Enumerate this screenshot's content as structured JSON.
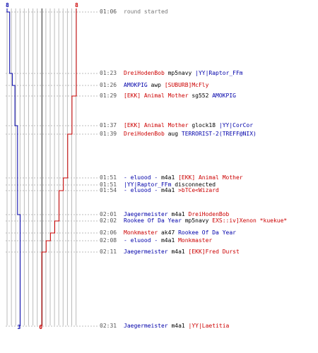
{
  "colors": {
    "blue": "#0000aa",
    "red": "#cc0000",
    "grid": "#bbbbbb",
    "dash": "#bbbbbb",
    "center": "#777777",
    "time": "#555555",
    "gray": "#777777"
  },
  "chart_data": {
    "type": "line",
    "title": "",
    "xlabel": "",
    "ylabel": "",
    "series": [
      {
        "name": "",
        "color": "blue",
        "start_label": "8",
        "end_label": "3",
        "x": [
          "01:06",
          "01:23",
          "01:26",
          "01:29",
          "01:37",
          "01:39",
          "01:51",
          "01:54",
          "02:01",
          "02:02",
          "02:06",
          "02:08",
          "02:11",
          "02:31"
        ],
        "values": [
          8,
          7,
          6,
          5,
          5,
          4,
          4,
          4,
          4,
          3,
          3,
          3,
          3,
          3
        ]
      },
      {
        "name": "",
        "color": "red",
        "start_label": "8",
        "end_label": "0",
        "x": [
          "01:06",
          "01:23",
          "01:26",
          "01:29",
          "01:37",
          "01:39",
          "01:51",
          "01:54",
          "02:01",
          "02:02",
          "02:06",
          "02:08",
          "02:11",
          "02:31"
        ],
        "values": [
          8,
          8,
          8,
          8,
          7,
          7,
          6,
          5,
          4,
          4,
          3,
          2,
          1,
          0
        ]
      }
    ]
  },
  "events": [
    {
      "time": "01:06",
      "parts": [
        {
          "t": "round started",
          "c": "gray"
        }
      ]
    },
    {
      "time": "01:23",
      "parts": [
        {
          "t": "DreiHodenBob",
          "c": "red"
        },
        {
          "t": " mp5navy ",
          "c": "black"
        },
        {
          "t": "|YY|Raptor_FFm",
          "c": "blue"
        }
      ]
    },
    {
      "time": "01:26",
      "parts": [
        {
          "t": "AMOKPIG",
          "c": "blue"
        },
        {
          "t": " awp ",
          "c": "black"
        },
        {
          "t": "[SUBURB]McFly",
          "c": "red"
        }
      ]
    },
    {
      "time": "01:29",
      "parts": [
        {
          "t": "[EKK] Animal Mother",
          "c": "red"
        },
        {
          "t": " sg552 ",
          "c": "black"
        },
        {
          "t": "AMOKPIG",
          "c": "blue"
        }
      ]
    },
    {
      "time": "01:37",
      "parts": [
        {
          "t": "[EKK] Animal Mother",
          "c": "red"
        },
        {
          "t": " glock18 ",
          "c": "black"
        },
        {
          "t": "|YY|CorCor",
          "c": "blue"
        }
      ]
    },
    {
      "time": "01:39",
      "parts": [
        {
          "t": "DreiHodenBob",
          "c": "red"
        },
        {
          "t": " aug ",
          "c": "black"
        },
        {
          "t": "TERRORIST-2(TREFF@NIX)",
          "c": "blue"
        }
      ]
    },
    {
      "time": "01:51",
      "parts": [
        {
          "t": "- eluood -",
          "c": "blue"
        },
        {
          "t": " m4a1 ",
          "c": "black"
        },
        {
          "t": "[EKK] Animal Mother",
          "c": "red"
        }
      ]
    },
    {
      "time": "01:51",
      "parts": [
        {
          "t": "|YY|Raptor_FFm",
          "c": "blue"
        },
        {
          "t": " disconnected",
          "c": "black"
        }
      ]
    },
    {
      "time": "01:54",
      "parts": [
        {
          "t": "- eluood -",
          "c": "blue"
        },
        {
          "t": " m4a1 ",
          "c": "black"
        },
        {
          "t": ">bTCe<Wizard",
          "c": "red"
        }
      ]
    },
    {
      "time": "02:01",
      "parts": [
        {
          "t": "Jaegermeister",
          "c": "blue"
        },
        {
          "t": " m4a1 ",
          "c": "black"
        },
        {
          "t": "DreiHodenBob",
          "c": "red"
        }
      ]
    },
    {
      "time": "02:02",
      "parts": [
        {
          "t": "Rookee Of Da Year",
          "c": "blue"
        },
        {
          "t": " mp5navy ",
          "c": "black"
        },
        {
          "t": "EXS::iv]Xenon *kuekue*",
          "c": "red"
        }
      ]
    },
    {
      "time": "02:06",
      "parts": [
        {
          "t": "Monkmaster",
          "c": "red"
        },
        {
          "t": " ak47 ",
          "c": "black"
        },
        {
          "t": "Rookee Of Da Year",
          "c": "blue"
        }
      ]
    },
    {
      "time": "02:08",
      "parts": [
        {
          "t": "- eluood -",
          "c": "blue"
        },
        {
          "t": " m4a1 ",
          "c": "black"
        },
        {
          "t": "Monkmaster",
          "c": "red"
        }
      ]
    },
    {
      "time": "02:11",
      "parts": [
        {
          "t": "Jaegermeister",
          "c": "blue"
        },
        {
          "t": " m4a1 ",
          "c": "black"
        },
        {
          "t": "[EKK]Fred Durst",
          "c": "red"
        }
      ]
    },
    {
      "time": "02:31",
      "parts": [
        {
          "t": "Jaegermeister",
          "c": "blue"
        },
        {
          "t": " m4a1 ",
          "c": "black"
        },
        {
          "t": "|YY|Laetitia",
          "c": "red"
        }
      ]
    }
  ]
}
